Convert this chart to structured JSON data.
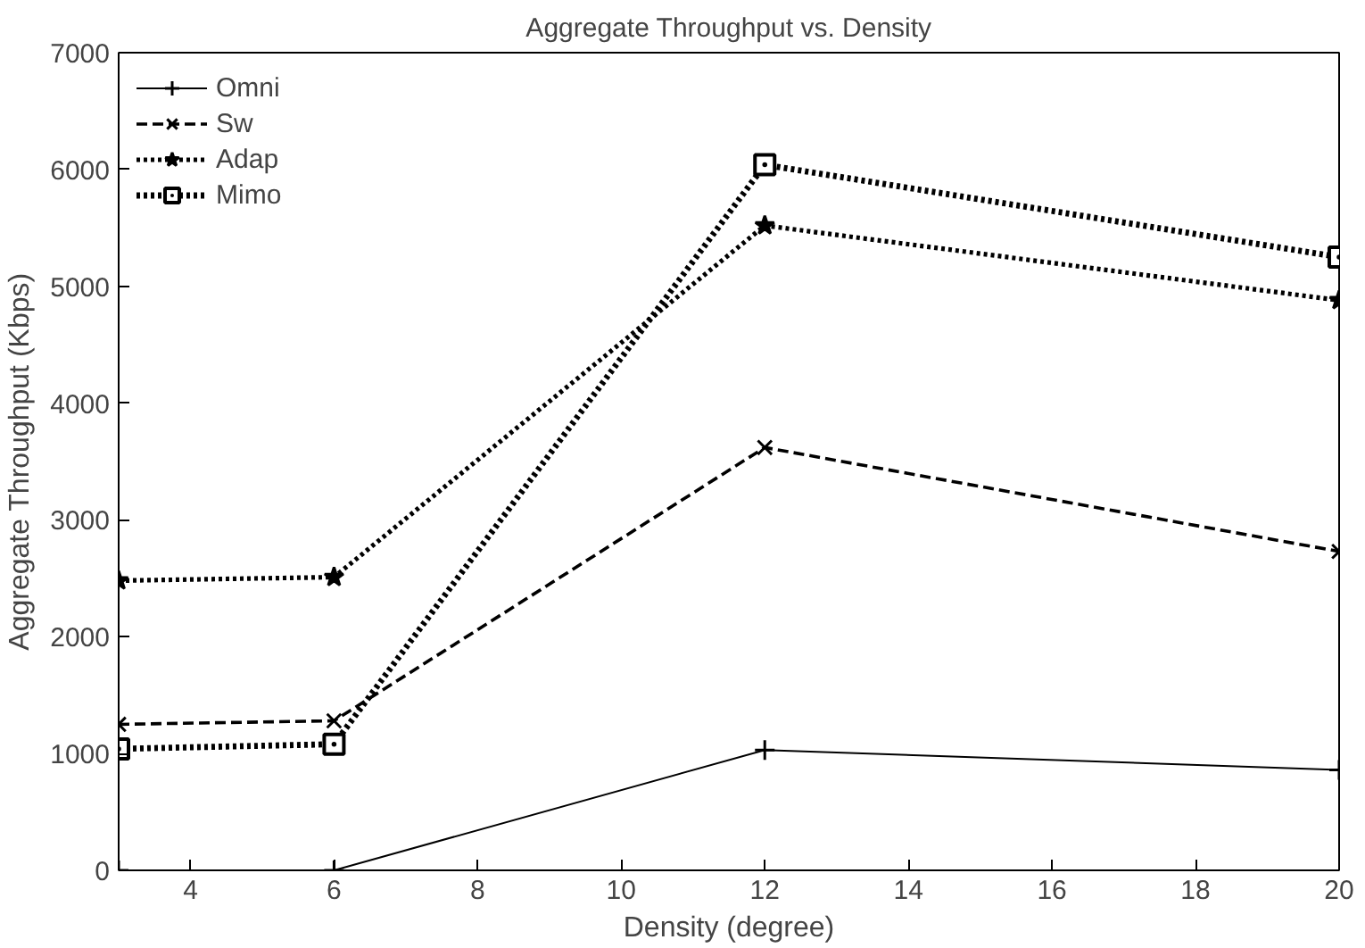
{
  "chart_data": {
    "type": "line",
    "title": "Aggregate Throughput vs. Density",
    "xlabel": "Density (degree)",
    "ylabel": "Aggregate Throughput (Kbps)",
    "x": [
      3,
      6,
      12,
      20
    ],
    "series": [
      {
        "name": "Omni",
        "color": "#000000",
        "values": [
          0,
          0,
          1030,
          860
        ],
        "marker": "cross",
        "line_style": "solid"
      },
      {
        "name": "Sw",
        "color": "#000000",
        "values": [
          1250,
          1280,
          3620,
          2730
        ],
        "marker": "x",
        "line_style": "dashed"
      },
      {
        "name": "Adap",
        "color": "#000000",
        "values": [
          2480,
          2510,
          5520,
          4880
        ],
        "marker": "star",
        "line_style": "dotted"
      },
      {
        "name": "Mimo",
        "color": "#000000",
        "values": [
          1040,
          1080,
          6040,
          5250
        ],
        "marker": "square",
        "line_style": "dotted"
      }
    ],
    "xlim": [
      3,
      20
    ],
    "xticks": [
      4,
      6,
      8,
      10,
      12,
      14,
      16,
      18,
      20
    ],
    "ylim": [
      0,
      7000
    ],
    "yticks": [
      0,
      1000,
      2000,
      3000,
      4000,
      5000,
      6000,
      7000
    ],
    "grid": false,
    "legend": "top left"
  }
}
